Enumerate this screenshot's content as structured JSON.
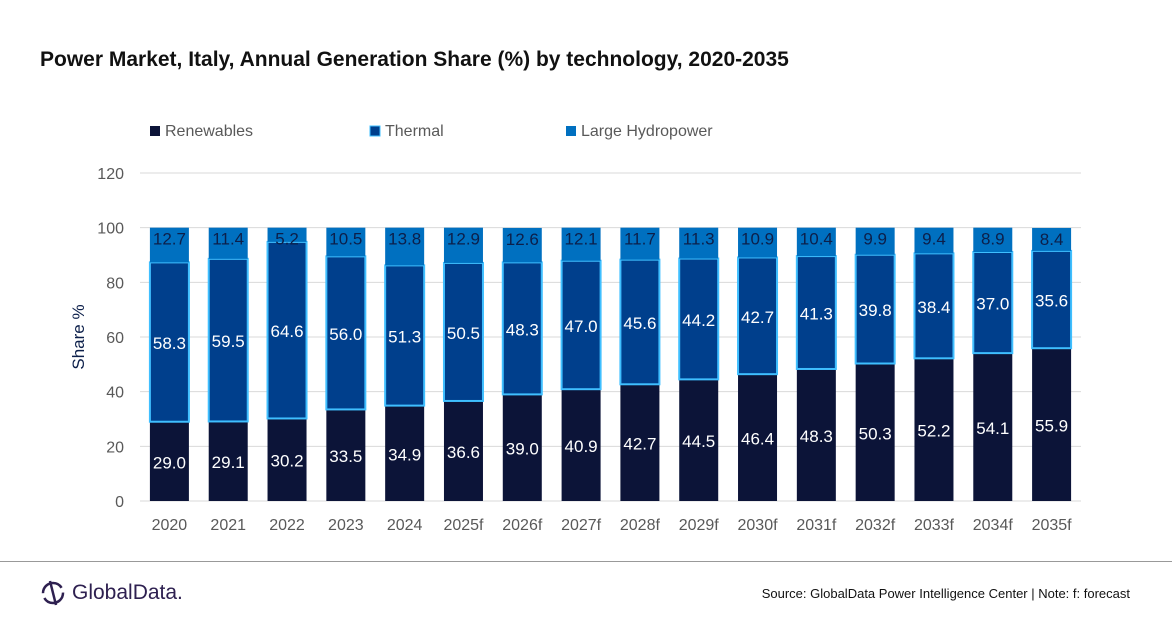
{
  "chart_data": {
    "type": "bar",
    "stacked": true,
    "title": "Power Market, Italy, Annual Generation Share (%) by technology, 2020-2035",
    "xlabel": "",
    "ylabel": "Share %",
    "ylim": [
      0,
      120
    ],
    "yticks": [
      0,
      20,
      40,
      60,
      80,
      100,
      120
    ],
    "grid": true,
    "legend_position": "top-left",
    "categories": [
      "2020",
      "2021",
      "2022",
      "2023",
      "2024",
      "2025f",
      "2026f",
      "2027f",
      "2028f",
      "2029f",
      "2030f",
      "2031f",
      "2032f",
      "2033f",
      "2034f",
      "2035f"
    ],
    "series": [
      {
        "name": "Renewables",
        "color": "#0c1438",
        "label_color": "#ffffff",
        "values": [
          29.0,
          29.1,
          30.2,
          33.5,
          34.9,
          36.6,
          39.0,
          40.9,
          42.7,
          44.5,
          46.4,
          48.3,
          50.3,
          52.2,
          54.1,
          55.9
        ]
      },
      {
        "name": "Thermal",
        "color": "#003f8c",
        "border": "#3fbfff",
        "label_color": "#ffffff",
        "values": [
          58.3,
          59.5,
          64.6,
          56.0,
          51.3,
          50.5,
          48.3,
          47.0,
          45.6,
          44.2,
          42.7,
          41.3,
          39.8,
          38.4,
          37.0,
          35.6
        ]
      },
      {
        "name": "Large Hydropower",
        "color": "#0070c0",
        "label_color": "#0c1f4a",
        "values": [
          12.7,
          11.4,
          5.2,
          10.5,
          13.8,
          12.9,
          12.6,
          12.1,
          11.7,
          11.3,
          10.9,
          10.4,
          9.9,
          9.4,
          8.9,
          8.4
        ]
      }
    ]
  },
  "footer": {
    "logo": "GlobalData.",
    "source": "Source: GlobalData Power Intelligence Center | Note: f: forecast"
  }
}
